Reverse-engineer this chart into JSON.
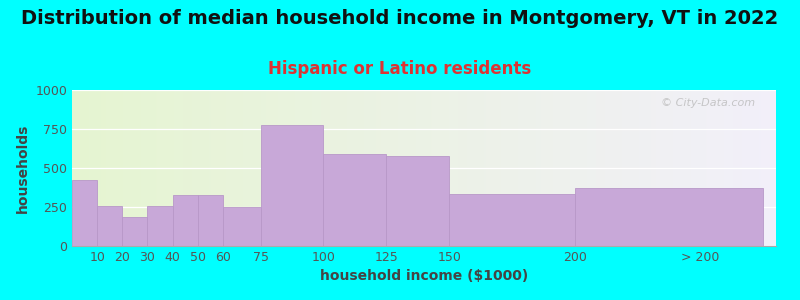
{
  "title": "Distribution of median household income in Montgomery, VT in 2022",
  "subtitle": "Hispanic or Latino residents",
  "xlabel": "household income ($1000)",
  "ylabel": "households",
  "background_color": "#00FFFF",
  "bar_color": "#c8a8d8",
  "bar_edge_color": "#b898c8",
  "watermark": "© City-Data.com",
  "ylim": [
    0,
    1000
  ],
  "yticks": [
    0,
    250,
    500,
    750,
    1000
  ],
  "values": [
    420,
    255,
    185,
    255,
    325,
    325,
    250,
    775,
    590,
    580,
    335,
    370
  ],
  "left_edges": [
    0,
    10,
    20,
    30,
    40,
    50,
    60,
    75,
    100,
    125,
    150,
    200
  ],
  "widths": [
    10,
    10,
    10,
    10,
    10,
    10,
    15,
    25,
    25,
    25,
    50,
    75
  ],
  "xtick_positions": [
    10,
    20,
    30,
    40,
    50,
    60,
    75,
    100,
    125,
    150,
    200,
    250
  ],
  "xtick_labels": [
    "10",
    "20",
    "30",
    "40",
    "50",
    "60",
    "75",
    "100",
    "125",
    "150",
    "200",
    "> 200"
  ],
  "xlim": [
    0,
    280
  ],
  "title_fontsize": 14,
  "subtitle_fontsize": 12,
  "subtitle_color": "#dd3333",
  "axis_label_fontsize": 10,
  "tick_fontsize": 9
}
